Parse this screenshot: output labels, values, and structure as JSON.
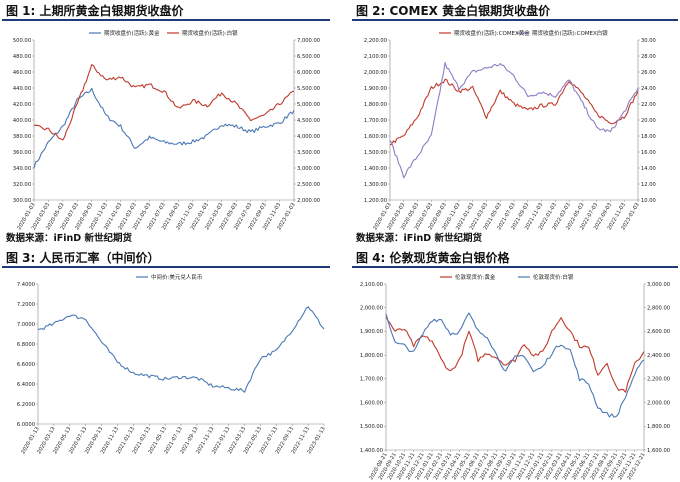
{
  "panels": [
    {
      "title": "图 1:  上期所黄金白银期货收盘价",
      "source": "数据来源：iFinD  新世纪期货"
    },
    {
      "title": "图 2:  COMEX 黄金白银期货收盘价",
      "source": "数据来源：iFinD  新世纪期货"
    },
    {
      "title": "图 3:  人民币汇率（中间价）",
      "source": ""
    },
    {
      "title": "图 4:  伦敦现货黄金白银价格",
      "source": ""
    }
  ],
  "colors": {
    "red": "#c0392b",
    "blue": "#4a78b5",
    "purple": "#8e7cc3",
    "rule": "#1f3a7a"
  },
  "chart_data": [
    {
      "type": "line",
      "title": "图 1:  上期所黄金白银期货收盘价",
      "legend_placement": "top-center",
      "x": [
        "2020-01-03",
        "2020-03-03",
        "2020-05-03",
        "2020-07-03",
        "2020-09-03",
        "2020-11-03",
        "2021-01-03",
        "2021-03-03",
        "2021-05-03",
        "2021-07-03",
        "2021-09-03",
        "2021-11-03",
        "2022-01-03",
        "2022-03-03",
        "2022-05-03",
        "2022-07-03",
        "2022-09-03",
        "2022-11-03",
        "2023-01-03"
      ],
      "y_left_ticks": [
        "500.00",
        "480.00",
        "460.00",
        "440.00",
        "420.00",
        "400.00",
        "380.00",
        "360.00",
        "340.00",
        "320.00",
        "300.00"
      ],
      "y_right_ticks": [
        "7,000.00",
        "6,500.00",
        "6,000.00",
        "5,500.00",
        "5,000.00",
        "4,500.00",
        "4,000.00",
        "3,500.00",
        "3,000.00",
        "2,500.00",
        "2,000.00"
      ],
      "ylim_left": [
        300,
        500
      ],
      "ylim_right": [
        2000,
        7000
      ],
      "series": [
        {
          "name": "期货收盘价(活跃):黄金",
          "axis": "left",
          "color": "#4a78b5",
          "values": [
            342,
            372,
            392,
            425,
            438,
            405,
            392,
            365,
            378,
            372,
            370,
            373,
            380,
            395,
            392,
            385,
            392,
            396,
            412
          ]
        },
        {
          "name": "期货收盘价(活跃):白银",
          "axis": "right",
          "color": "#c0392b",
          "values": [
            4300,
            4200,
            3850,
            5000,
            6200,
            5750,
            5850,
            5500,
            5600,
            5400,
            4850,
            5100,
            4950,
            5350,
            5000,
            4500,
            4650,
            5000,
            5400
          ]
        }
      ]
    },
    {
      "type": "line",
      "title": "图 2:  COMEX 黄金白银期货收盘价",
      "legend_placement": "top-center",
      "x": [
        "2020-01-03",
        "2020-03-03",
        "2020-05-03",
        "2020-07-03",
        "2020-09-03",
        "2020-11-03",
        "2021-01-03",
        "2021-03-03",
        "2021-05-03",
        "2021-07-03",
        "2021-09-03",
        "2021-11-03",
        "2022-01-03",
        "2022-03-03",
        "2022-05-03",
        "2022-07-03",
        "2022-09-03",
        "2022-11-03",
        "2023-01-03"
      ],
      "y_left_ticks": [
        "2,200.00",
        "2,100.00",
        "2,000.00",
        "1,900.00",
        "1,800.00",
        "1,700.00",
        "1,600.00",
        "1,500.00",
        "1,400.00",
        "1,300.00",
        "1,200.00"
      ],
      "y_right_ticks": [
        "30.00",
        "28.00",
        "26.00",
        "24.00",
        "22.00",
        "20.00",
        "18.00",
        "16.00",
        "14.00",
        "12.00",
        "10.00"
      ],
      "ylim_left": [
        1200,
        2200
      ],
      "ylim_right": [
        10,
        30
      ],
      "series": [
        {
          "name": "期货收盘价(活跃):COMEX黄金",
          "axis": "left",
          "color": "#c0392b",
          "values": [
            1550,
            1600,
            1720,
            1900,
            1950,
            1880,
            1900,
            1720,
            1880,
            1800,
            1760,
            1790,
            1800,
            1950,
            1860,
            1740,
            1680,
            1720,
            1880
          ]
        },
        {
          "name": "期货收盘价(活跃):COMEX白银",
          "axis": "right",
          "color": "#8e7cc3",
          "values": [
            17.5,
            13,
            15.5,
            18,
            27,
            24,
            26,
            26.5,
            27,
            25.5,
            23,
            23.5,
            23,
            25,
            22,
            19,
            18.5,
            21,
            24
          ]
        }
      ]
    },
    {
      "type": "line",
      "title": "图 3:  人民币汇率（中间价）",
      "legend_placement": "top-center",
      "x": [
        "2020-01-13",
        "2020-03-13",
        "2020-05-13",
        "2020-07-13",
        "2020-09-13",
        "2020-11-13",
        "2021-01-13",
        "2021-03-13",
        "2021-05-13",
        "2021-07-13",
        "2021-09-13",
        "2021-11-13",
        "2022-01-13",
        "2022-03-13",
        "2022-05-13",
        "2022-07-13",
        "2022-09-13",
        "2022-11-13",
        "2023-01-13"
      ],
      "y_ticks": [
        "7.4000",
        "7.2000",
        "7.0000",
        "6.8000",
        "6.6000",
        "6.4000",
        "6.2000",
        "6.0000"
      ],
      "ylim": [
        6.0,
        7.4
      ],
      "series": [
        {
          "name": "中间价:美元兑人民币",
          "color": "#4a78b5",
          "values": [
            6.94,
            7.0,
            7.09,
            7.05,
            6.82,
            6.62,
            6.51,
            6.48,
            6.45,
            6.47,
            6.46,
            6.38,
            6.36,
            6.33,
            6.66,
            6.73,
            6.94,
            7.18,
            6.95
          ]
        }
      ]
    },
    {
      "type": "line",
      "title": "图 4:  伦敦现货黄金白银价格",
      "legend_placement": "top-center",
      "x": [
        "2020-08-21",
        "2020-09-21",
        "2020-10-21",
        "2020-11-21",
        "2020-12-21",
        "2021-01-21",
        "2021-02-21",
        "2021-03-21",
        "2021-04-21",
        "2021-05-21",
        "2021-06-21",
        "2021-07-21",
        "2021-08-21",
        "2021-09-21",
        "2021-10-21",
        "2021-11-21",
        "2021-12-21",
        "2022-01-21",
        "2022-02-21",
        "2022-03-21",
        "2022-04-21",
        "2022-05-21",
        "2022-06-21",
        "2022-07-21",
        "2022-08-21",
        "2022-09-21",
        "2022-10-21",
        "2022-11-21",
        "2022-12-21"
      ],
      "y_left_ticks": [
        "2,100.00",
        "2,000.00",
        "1,900.00",
        "1,800.00",
        "1,700.00",
        "1,600.00",
        "1,500.00",
        "1,400.00"
      ],
      "y_right_ticks": [
        "3,000.00",
        "2,800.00",
        "2,600.00",
        "2,400.00",
        "2,200.00",
        "2,000.00",
        "1,800.00",
        "1,600.00"
      ],
      "ylim_left": [
        1400,
        2100
      ],
      "ylim_right": [
        1600,
        3000
      ],
      "series": [
        {
          "name": "伦敦现货价:黄金",
          "axis": "left",
          "color": "#c0392b",
          "values": [
            1960,
            1900,
            1910,
            1840,
            1880,
            1860,
            1780,
            1730,
            1780,
            1900,
            1780,
            1810,
            1790,
            1760,
            1780,
            1850,
            1800,
            1810,
            1900,
            1960,
            1900,
            1840,
            1830,
            1720,
            1770,
            1660,
            1650,
            1760,
            1815
          ]
        },
        {
          "name": "伦敦现货价:白银",
          "axis": "right",
          "color": "#4a78b5",
          "values": [
            2750,
            2500,
            2480,
            2420,
            2580,
            2700,
            2700,
            2580,
            2600,
            2750,
            2600,
            2560,
            2400,
            2260,
            2380,
            2400,
            2260,
            2300,
            2420,
            2500,
            2440,
            2200,
            2160,
            1960,
            1900,
            1880,
            2050,
            2240,
            2360
          ]
        }
      ]
    }
  ]
}
